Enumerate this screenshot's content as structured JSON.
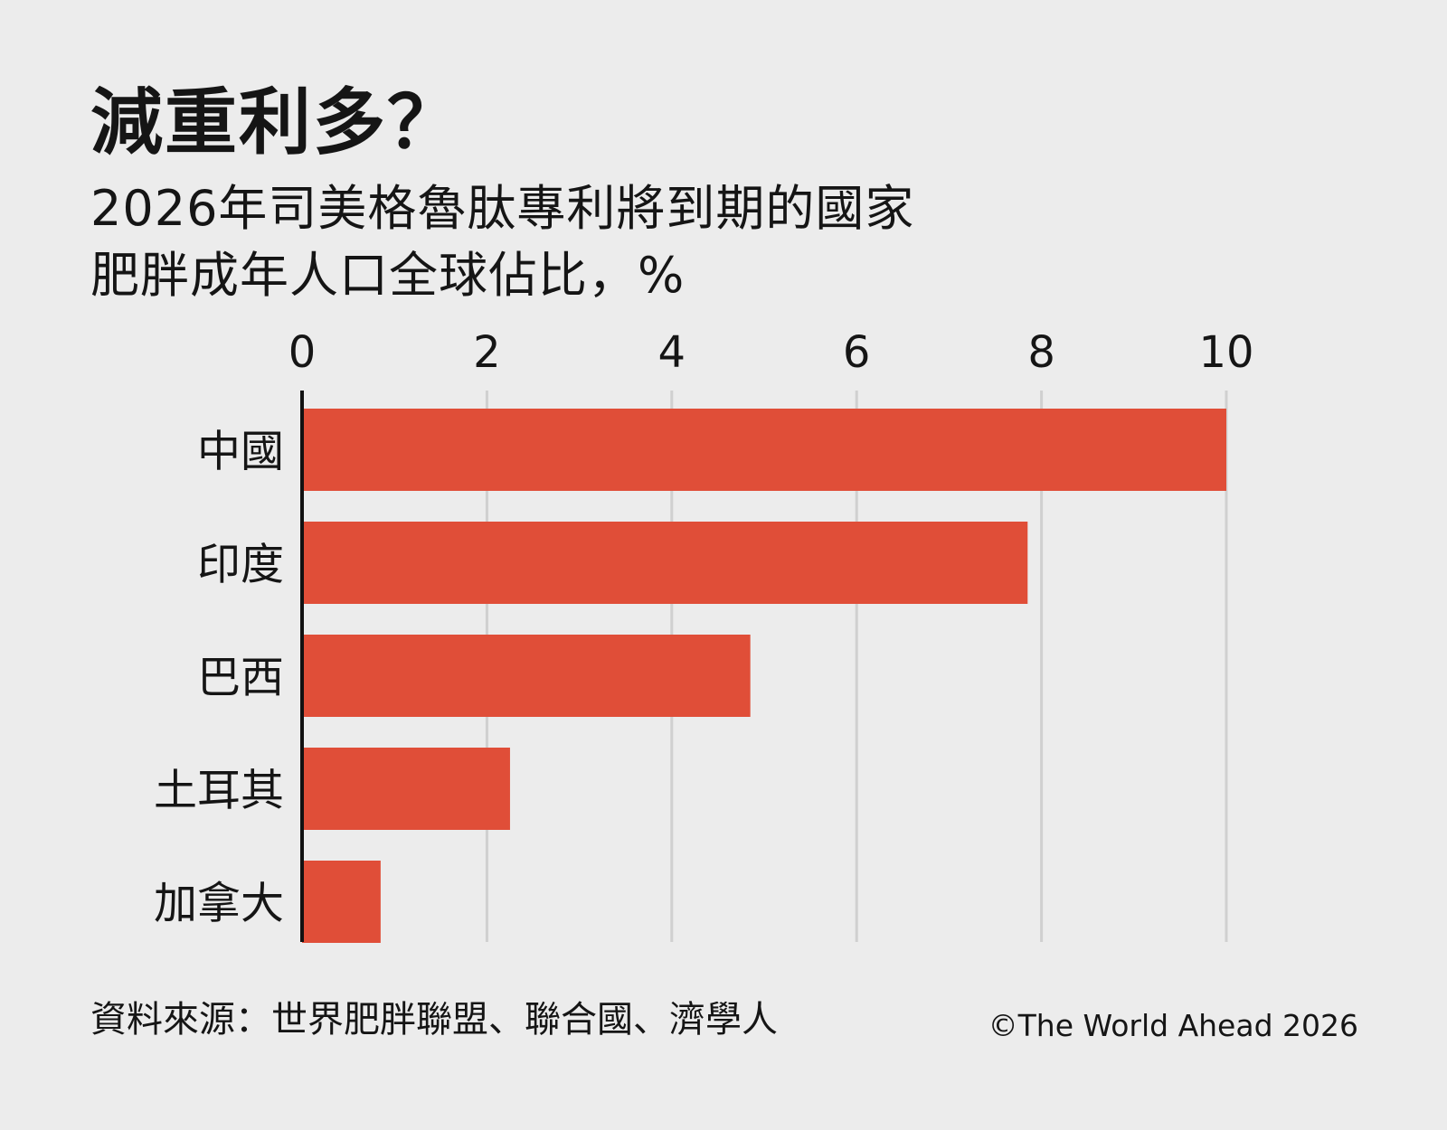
{
  "header": {
    "title": "減重利多？",
    "subtitle_line1": "2026年司美格魯肽專利將到期的國家",
    "subtitle_line2": "肥胖成年人口全球佔比，%"
  },
  "chart_data": {
    "type": "bar",
    "orientation": "horizontal",
    "categories": [
      "中國",
      "印度",
      "巴西",
      "土耳其",
      "加拿大"
    ],
    "values": [
      10.0,
      7.85,
      4.85,
      2.25,
      0.85
    ],
    "xlim": [
      0,
      10
    ],
    "x_ticks": [
      "0",
      "2",
      "4",
      "6",
      "8",
      "10"
    ],
    "tick_values": [
      0,
      2,
      4,
      6,
      8,
      10
    ],
    "x_axis_position": "top",
    "grid": true,
    "bar_color": "#e04e38",
    "grid_color": "#d0d0d0"
  },
  "footer": {
    "source": "資料來源：世界肥胖聯盟、聯合國、濟學人",
    "copyright": "©The World Ahead 2026"
  }
}
